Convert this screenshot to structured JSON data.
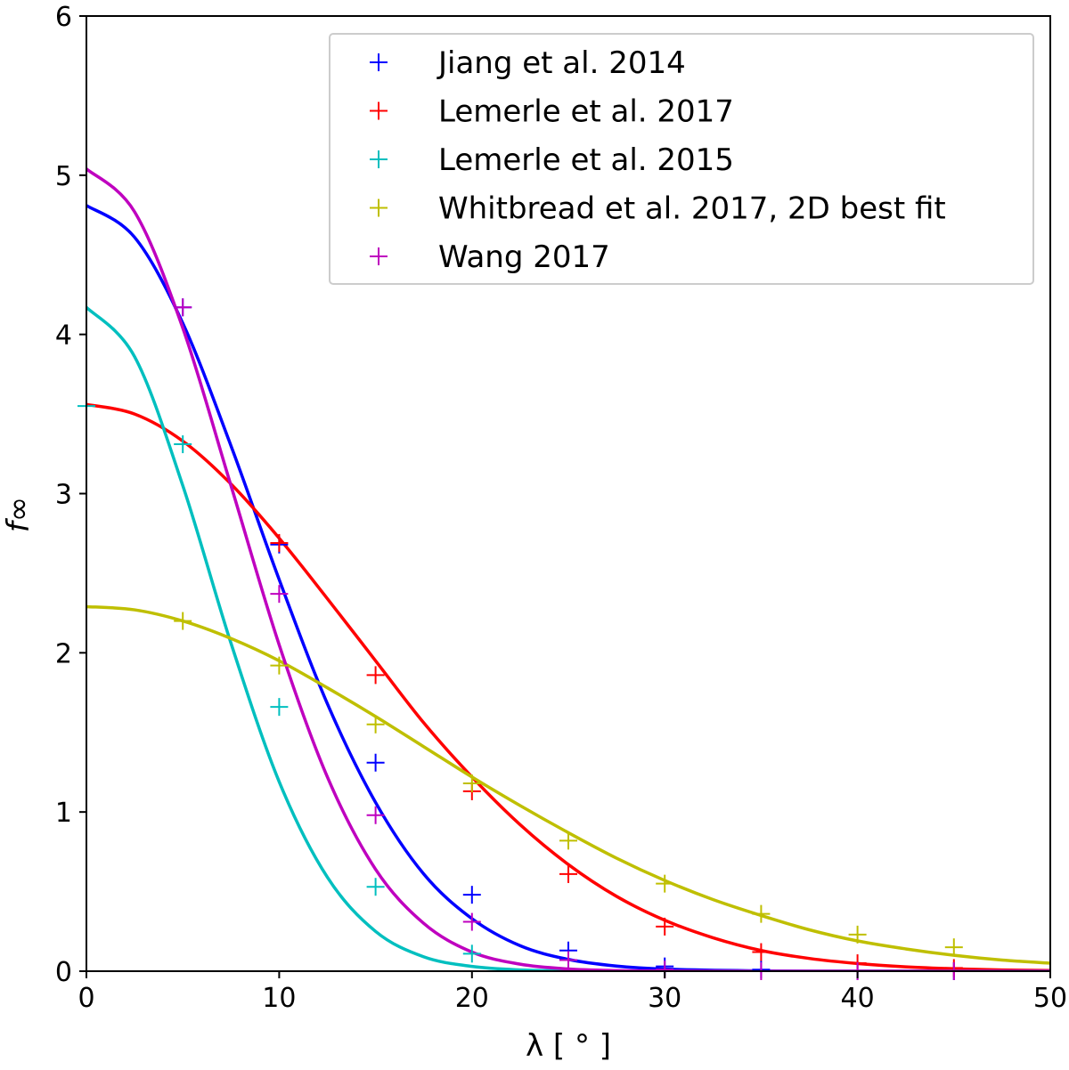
{
  "chart_data": {
    "type": "line",
    "title": "",
    "xlabel": "λ [ ° ]",
    "ylabel": "f∞",
    "xlim": [
      0,
      50
    ],
    "ylim": [
      0,
      6
    ],
    "xticks": [
      0,
      10,
      20,
      30,
      40,
      50
    ],
    "yticks": [
      0,
      1,
      2,
      3,
      4,
      5,
      6
    ],
    "grid": false,
    "legend_position": "top-right",
    "series": [
      {
        "name": "Jiang et al. 2014",
        "color": "#0000ff",
        "marker": "+",
        "points": {
          "x": [
            5,
            10,
            15,
            20,
            25,
            30,
            35,
            40,
            45
          ],
          "y": [
            4.17,
            2.68,
            1.31,
            0.48,
            0.13,
            0.03,
            0.01,
            0.0,
            0.0
          ]
        },
        "curve": {
          "x": [
            0,
            2.5,
            5,
            7.5,
            10,
            12.5,
            15,
            17.5,
            20,
            22.5,
            25,
            27.5,
            30,
            35,
            40,
            45,
            50
          ],
          "y": [
            4.81,
            4.61,
            4.07,
            3.3,
            2.46,
            1.68,
            1.06,
            0.61,
            0.33,
            0.16,
            0.074,
            0.032,
            0.013,
            0.002,
            0.0,
            0.0,
            0.0
          ]
        }
      },
      {
        "name": "Lemerle et al. 2017",
        "color": "#ff0000",
        "marker": "+",
        "points": {
          "x": [
            10,
            15,
            20,
            25,
            30,
            35,
            40,
            45
          ],
          "y": [
            2.69,
            1.86,
            1.13,
            0.61,
            0.28,
            0.12,
            0.05,
            0.02
          ]
        },
        "curve": {
          "x": [
            0,
            2.5,
            5,
            7.5,
            10,
            12.5,
            15,
            17.5,
            20,
            22.5,
            25,
            27.5,
            30,
            32.5,
            35,
            37.5,
            40,
            42.5,
            45,
            47.5,
            50
          ],
          "y": [
            3.56,
            3.5,
            3.33,
            3.06,
            2.72,
            2.34,
            1.95,
            1.56,
            1.22,
            0.92,
            0.67,
            0.47,
            0.32,
            0.21,
            0.13,
            0.08,
            0.048,
            0.027,
            0.015,
            0.008,
            0.004
          ]
        }
      },
      {
        "name": "Lemerle et al. 2015",
        "color": "#00bfbf",
        "marker": "+",
        "points": {
          "x": [
            0,
            5,
            10,
            15,
            20
          ],
          "y": [
            3.55,
            3.31,
            1.66,
            0.53,
            0.11
          ]
        },
        "curve": {
          "x": [
            0,
            2.5,
            5,
            7.5,
            10,
            12.5,
            15,
            17.5,
            20,
            22.5,
            25,
            27.5,
            30,
            35,
            40,
            45,
            50
          ],
          "y": [
            4.17,
            3.86,
            3.05,
            2.06,
            1.19,
            0.59,
            0.25,
            0.09,
            0.03,
            0.008,
            0.002,
            0.0,
            0.0,
            0.0,
            0.0,
            0.0,
            0.0
          ]
        }
      },
      {
        "name": "Whitbread et al. 2017, 2D best fit",
        "color": "#bfbf00",
        "marker": "+",
        "points": {
          "x": [
            5,
            10,
            15,
            20,
            25,
            30,
            35,
            40,
            45
          ],
          "y": [
            2.2,
            1.92,
            1.55,
            1.18,
            0.82,
            0.55,
            0.36,
            0.23,
            0.15
          ]
        },
        "curve": {
          "x": [
            0,
            2.5,
            5,
            7.5,
            10,
            12.5,
            15,
            17.5,
            20,
            22.5,
            25,
            27.5,
            30,
            32.5,
            35,
            37.5,
            40,
            42.5,
            45,
            47.5,
            50
          ],
          "y": [
            2.29,
            2.27,
            2.2,
            2.09,
            1.95,
            1.78,
            1.6,
            1.41,
            1.22,
            1.04,
            0.87,
            0.71,
            0.57,
            0.45,
            0.35,
            0.26,
            0.19,
            0.14,
            0.1,
            0.07,
            0.05
          ]
        }
      },
      {
        "name": "Wang 2017",
        "color": "#bf00bf",
        "marker": "+",
        "points": {
          "x": [
            5,
            10,
            15,
            20,
            25,
            30,
            35,
            40,
            45
          ],
          "y": [
            4.17,
            2.37,
            0.98,
            0.31,
            0.07,
            0.01,
            0.0,
            0.0,
            0.0
          ]
        },
        "curve": {
          "x": [
            0,
            2.5,
            5,
            7.5,
            10,
            12.5,
            15,
            17.5,
            20,
            22.5,
            25,
            27.5,
            30,
            35,
            40,
            45,
            50
          ],
          "y": [
            5.04,
            4.77,
            4.04,
            3.05,
            2.05,
            1.22,
            0.64,
            0.3,
            0.12,
            0.044,
            0.014,
            0.004,
            0.001,
            0.0,
            0.0,
            0.0,
            0.0
          ]
        }
      }
    ]
  }
}
